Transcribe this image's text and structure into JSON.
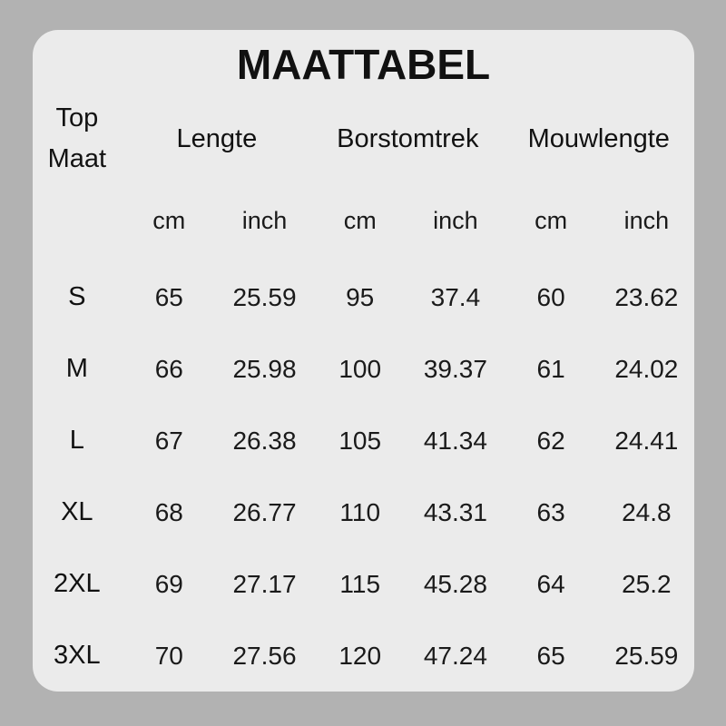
{
  "title": "MAATTABEL",
  "colors": {
    "page_background": "#b2b2b2",
    "card_background": "#ebebeb",
    "text": "#141414"
  },
  "table": {
    "size_column": {
      "line1": "Top",
      "line2": "Maat"
    },
    "group_headers": [
      "Lengte",
      "Borstomtrek",
      "Mouwlengte"
    ],
    "unit_headers": [
      "cm",
      "inch",
      "cm",
      "inch",
      "cm",
      "inch"
    ],
    "rows": [
      {
        "size": "S",
        "values": [
          "65",
          "25.59",
          "95",
          "37.4",
          "60",
          "23.62"
        ]
      },
      {
        "size": "M",
        "values": [
          "66",
          "25.98",
          "100",
          "39.37",
          "61",
          "24.02"
        ]
      },
      {
        "size": "L",
        "values": [
          "67",
          "26.38",
          "105",
          "41.34",
          "62",
          "24.41"
        ]
      },
      {
        "size": "XL",
        "values": [
          "68",
          "26.77",
          "110",
          "43.31",
          "63",
          "24.8"
        ]
      },
      {
        "size": "2XL",
        "values": [
          "69",
          "27.17",
          "115",
          "45.28",
          "64",
          "25.2"
        ]
      },
      {
        "size": "3XL",
        "values": [
          "70",
          "27.56",
          "120",
          "47.24",
          "65",
          "25.59"
        ]
      }
    ]
  }
}
